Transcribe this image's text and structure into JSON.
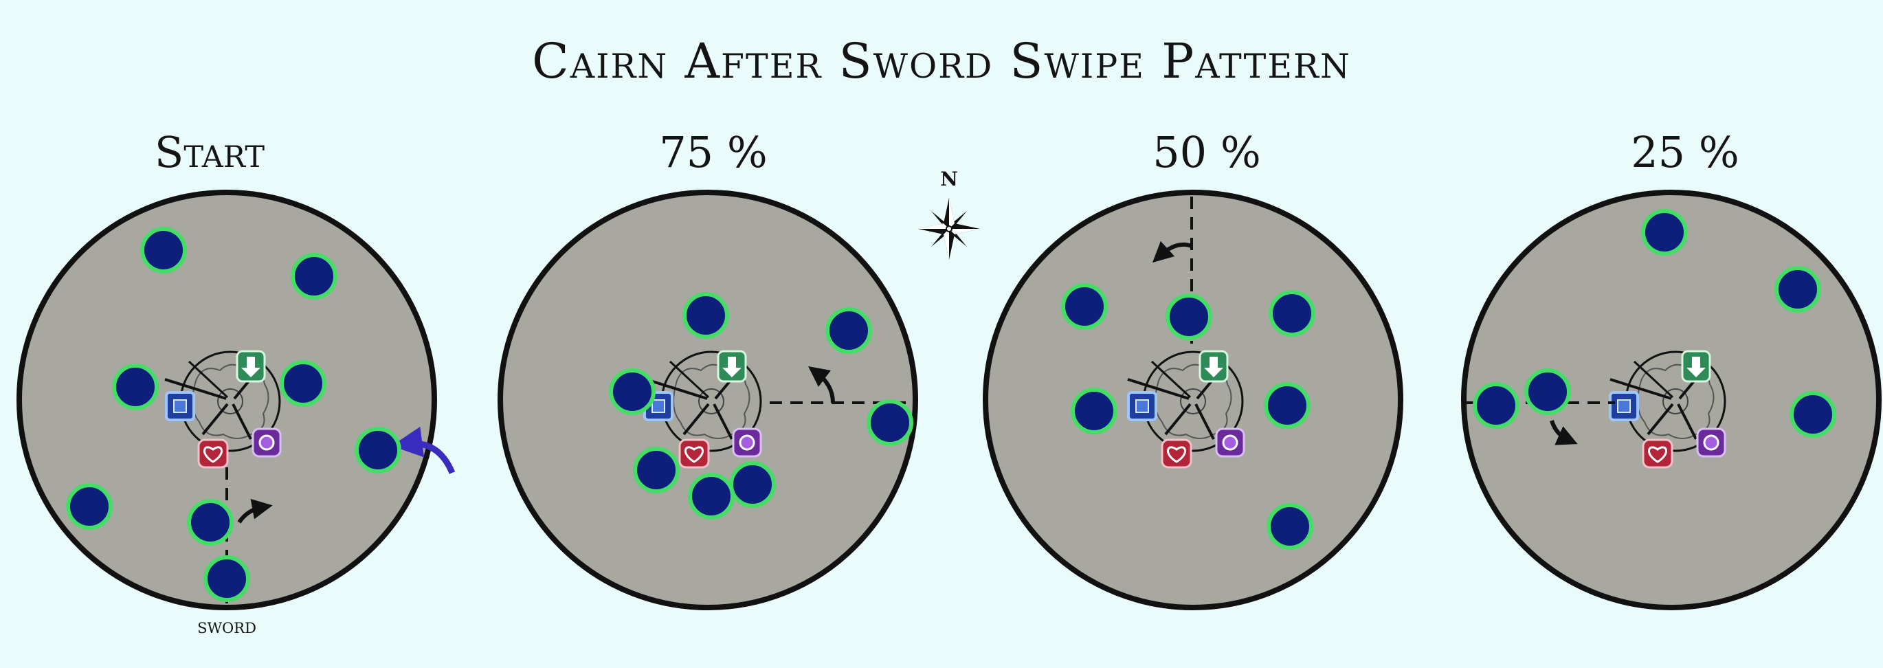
{
  "title": "Cairn After Sword Swipe Pattern",
  "compass": {
    "label": "N",
    "icon": "compass-rose-icon"
  },
  "panels": [
    {
      "label": "Start",
      "marker_label": "sword"
    },
    {
      "label": "75 %"
    },
    {
      "label": "50 %"
    },
    {
      "label": "25 %"
    }
  ],
  "center_markers": [
    {
      "name": "green-arrow-icon",
      "color": "#2e8b57"
    },
    {
      "name": "blue-square-icon",
      "color": "#1f3f9e"
    },
    {
      "name": "red-heart-icon",
      "color": "#b3263a"
    },
    {
      "name": "purple-circle-icon",
      "color": "#6a2a9a"
    }
  ],
  "colors": {
    "background": "#eafbfc",
    "arena": "#a8a8a1",
    "player_fill": "#0d1f7a",
    "player_ring": "#44dd66",
    "accent_arrow": "#3b2cc0"
  }
}
